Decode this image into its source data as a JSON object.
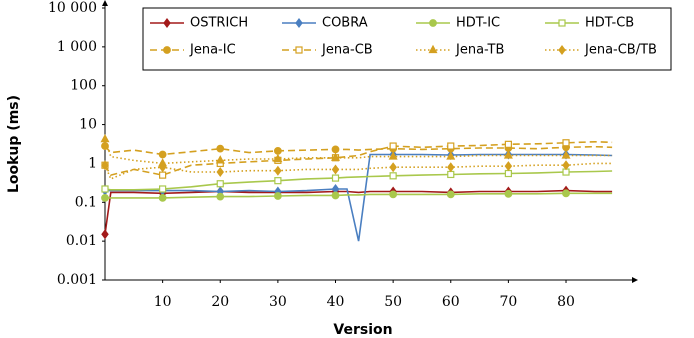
{
  "chart_data": {
    "type": "line",
    "x_label": "Version",
    "y_label": "Lookup (ms)",
    "log_y": true,
    "xlim": [
      0,
      88.5
    ],
    "xticks": [
      10,
      20,
      30,
      40,
      50,
      60,
      70,
      80
    ],
    "ylim": [
      0.001,
      10000
    ],
    "yticks": [
      0.001,
      0.01,
      0.1,
      1,
      10,
      100,
      {
        "value": 1000,
        "label": "1 000"
      },
      {
        "value": 10000,
        "label": "10 000"
      }
    ],
    "legend": "top-right",
    "x": [
      0,
      1,
      5,
      10,
      15,
      20,
      25,
      30,
      35,
      40,
      42,
      44,
      46,
      50,
      55,
      60,
      65,
      70,
      75,
      80,
      85,
      88
    ],
    "series": [
      {
        "name": "OSTRICH",
        "color": "#a31a1a",
        "dash": "solid",
        "marker": "diamond",
        "values": [
          0.015,
          0.18,
          0.18,
          0.17,
          0.18,
          0.19,
          0.18,
          0.18,
          0.18,
          0.19,
          0.19,
          0.18,
          0.19,
          0.19,
          0.19,
          0.18,
          0.19,
          0.19,
          0.19,
          0.2,
          0.19,
          0.19
        ]
      },
      {
        "name": "COBRA",
        "color": "#4a7fc1",
        "dash": "solid",
        "marker": "diamond",
        "values": [
          0.2,
          0.2,
          0.2,
          0.2,
          0.2,
          0.19,
          0.2,
          0.19,
          0.2,
          0.22,
          0.22,
          0.01,
          1.7,
          1.7,
          1.7,
          1.65,
          1.7,
          1.7,
          1.7,
          1.7,
          1.65,
          1.6
        ]
      },
      {
        "name": "HDT-IC",
        "color": "#a9c84c",
        "dash": "solid",
        "marker": "circle",
        "values": [
          0.13,
          0.13,
          0.13,
          0.13,
          0.135,
          0.14,
          0.14,
          0.145,
          0.15,
          0.15,
          0.155,
          0.155,
          0.16,
          0.16,
          0.16,
          0.16,
          0.165,
          0.165,
          0.165,
          0.17,
          0.17,
          0.17
        ]
      },
      {
        "name": "HDT-CB",
        "color": "#a9c84c",
        "dash": "solid",
        "marker": "square",
        "values": [
          0.22,
          0.21,
          0.21,
          0.22,
          0.25,
          0.3,
          0.33,
          0.36,
          0.4,
          0.42,
          0.44,
          0.45,
          0.46,
          0.48,
          0.5,
          0.52,
          0.54,
          0.55,
          0.57,
          0.6,
          0.62,
          0.64
        ]
      },
      {
        "name": "Jena-IC",
        "color": "#d4a020",
        "dash": "dashed",
        "marker": "circle",
        "values": [
          2.8,
          1.9,
          2.2,
          1.7,
          2.0,
          2.4,
          1.9,
          2.1,
          2.2,
          2.3,
          2.3,
          2.2,
          2.3,
          2.4,
          2.3,
          2.4,
          2.5,
          2.5,
          2.4,
          2.6,
          2.7,
          2.6
        ]
      },
      {
        "name": "Jena-CB",
        "color": "#d4a020",
        "dash": "dashed",
        "marker": "square",
        "values": [
          0.9,
          0.5,
          0.7,
          0.5,
          0.9,
          1.0,
          1.1,
          1.2,
          1.3,
          1.4,
          1.5,
          1.6,
          2.0,
          2.8,
          2.6,
          2.8,
          2.9,
          3.1,
          3.2,
          3.4,
          3.6,
          3.5
        ]
      },
      {
        "name": "Jena-TB",
        "color": "#d4a020",
        "dash": "dotted",
        "marker": "triangle",
        "values": [
          4.2,
          1.5,
          1.2,
          1.0,
          1.1,
          1.2,
          1.3,
          1.3,
          1.4,
          1.4,
          1.4,
          1.4,
          1.5,
          1.5,
          1.5,
          1.5,
          1.6,
          1.6,
          1.6,
          1.6,
          1.6,
          1.6
        ]
      },
      {
        "name": "Jena-CB/TB",
        "color": "#d4a020",
        "dash": "dotted",
        "marker": "diamond",
        "values": [
          0.9,
          0.4,
          0.7,
          0.8,
          0.6,
          0.6,
          0.65,
          0.65,
          0.7,
          0.7,
          0.7,
          0.7,
          0.75,
          0.8,
          0.8,
          0.8,
          0.85,
          0.85,
          0.9,
          0.9,
          1.0,
          1.0
        ]
      }
    ]
  }
}
